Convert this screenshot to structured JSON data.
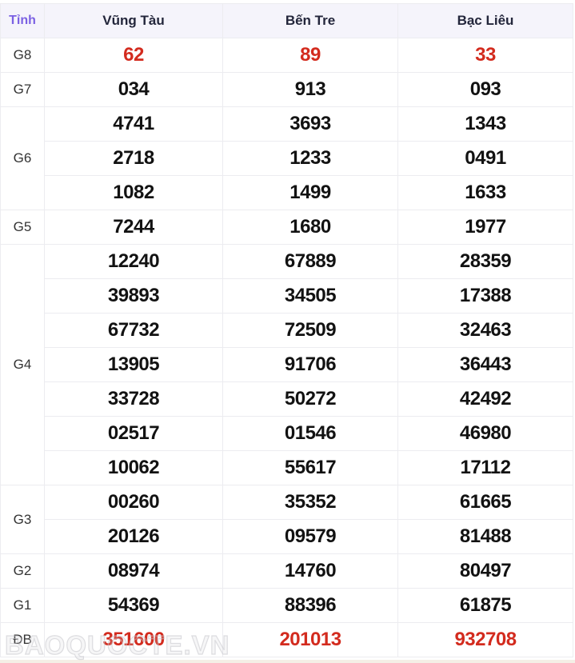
{
  "page": {
    "watermark": "BAOQUOCTE.VN"
  },
  "colors": {
    "accent_purple": "#7b61e3",
    "header_navy": "#23263b",
    "highlight_red": "#d32b1e",
    "header_bg": "#f5f4fb",
    "border": "#ececf0"
  },
  "table": {
    "corner_label": "Tỉnh",
    "columns": [
      "Vũng Tàu",
      "Bến Tre",
      "Bạc Liêu"
    ],
    "prizes": [
      {
        "label": "G8",
        "color": "red",
        "rows": [
          [
            "62",
            "89",
            "33"
          ]
        ]
      },
      {
        "label": "G7",
        "color": "black",
        "rows": [
          [
            "034",
            "913",
            "093"
          ]
        ]
      },
      {
        "label": "G6",
        "color": "black",
        "rows": [
          [
            "4741",
            "3693",
            "1343"
          ],
          [
            "2718",
            "1233",
            "0491"
          ],
          [
            "1082",
            "1499",
            "1633"
          ]
        ]
      },
      {
        "label": "G5",
        "color": "black",
        "rows": [
          [
            "7244",
            "1680",
            "1977"
          ]
        ]
      },
      {
        "label": "G4",
        "color": "black",
        "rows": [
          [
            "12240",
            "67889",
            "28359"
          ],
          [
            "39893",
            "34505",
            "17388"
          ],
          [
            "67732",
            "72509",
            "32463"
          ],
          [
            "13905",
            "91706",
            "36443"
          ],
          [
            "33728",
            "50272",
            "42492"
          ],
          [
            "02517",
            "01546",
            "46980"
          ],
          [
            "10062",
            "55617",
            "17112"
          ]
        ]
      },
      {
        "label": "G3",
        "color": "black",
        "rows": [
          [
            "00260",
            "35352",
            "61665"
          ],
          [
            "20126",
            "09579",
            "81488"
          ]
        ]
      },
      {
        "label": "G2",
        "color": "black",
        "rows": [
          [
            "08974",
            "14760",
            "80497"
          ]
        ]
      },
      {
        "label": "G1",
        "color": "black",
        "rows": [
          [
            "54369",
            "88396",
            "61875"
          ]
        ]
      },
      {
        "label": "ĐB",
        "color": "red",
        "rows": [
          [
            "351600",
            "201013",
            "932708"
          ]
        ]
      }
    ]
  }
}
